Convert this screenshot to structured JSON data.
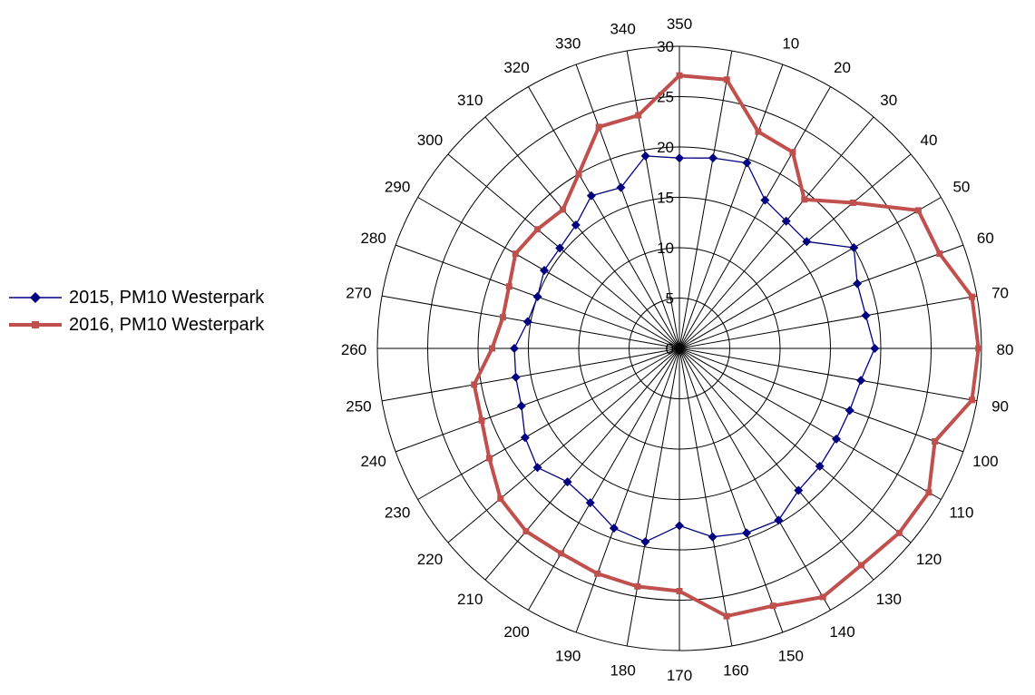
{
  "colors": {
    "series_2015": "#000080",
    "series_2016": "#c0504d",
    "grid": "#000000"
  },
  "chart_data": {
    "type": "radar",
    "title": "",
    "angles": [
      "350",
      "0",
      "10",
      "20",
      "30",
      "40",
      "50",
      "60",
      "70",
      "80",
      "90",
      "100",
      "110",
      "120",
      "130",
      "140",
      "150",
      "160",
      "170",
      "180",
      "190",
      "200",
      "210",
      "220",
      "230",
      "240",
      "250",
      "260",
      "270",
      "280",
      "290",
      "300",
      "310",
      "320",
      "330",
      "340"
    ],
    "angle_labels": [
      "350",
      "10",
      "20",
      "30",
      "40",
      "50",
      "60",
      "70",
      "80",
      "90",
      "100",
      "110",
      "120",
      "130",
      "140",
      "150",
      "160",
      "170",
      "180",
      "190",
      "200",
      "210",
      "220",
      "230",
      "240",
      "250",
      "260",
      "270",
      "280",
      "290",
      "300",
      "310",
      "320",
      "330",
      "340"
    ],
    "radial_ticks": [
      0,
      5,
      10,
      15,
      20,
      25,
      30
    ],
    "rlim": [
      0,
      30
    ],
    "grid": true,
    "legend_position": "left",
    "series": [
      {
        "name": "2015, PM10 Westerpark",
        "marker": "diamond",
        "color": "#000080",
        "values": [
          18.9,
          19.2,
          19.6,
          17.0,
          16.5,
          16.5,
          20.0,
          18.8,
          18.8,
          19.4,
          18.3,
          18.0,
          18.0,
          18.2,
          18.4,
          19.7,
          19.5,
          19.0,
          17.6,
          19.5,
          19.0,
          17.7,
          17.3,
          18.4,
          17.7,
          16.7,
          16.5,
          16.4,
          15.3,
          15.0,
          15.5,
          15.5,
          16.0,
          17.5,
          17.0,
          19.4
        ]
      },
      {
        "name": "2016, PM10 Westerpark",
        "marker": "square",
        "color": "#c0504d",
        "values": [
          27.1,
          27.1,
          22.9,
          22.5,
          19.3,
          22.5,
          27.4,
          27.5,
          29.5,
          29.7,
          29.5,
          27.0,
          28.6,
          28.5,
          28.1,
          28.5,
          27.2,
          27.0,
          24.1,
          24.0,
          23.8,
          23.5,
          23.7,
          23.2,
          21.8,
          20.9,
          20.7,
          18.6,
          17.8,
          18.0,
          18.8,
          18.4,
          18.0,
          20.0,
          23.4,
          23.5
        ]
      }
    ]
  }
}
